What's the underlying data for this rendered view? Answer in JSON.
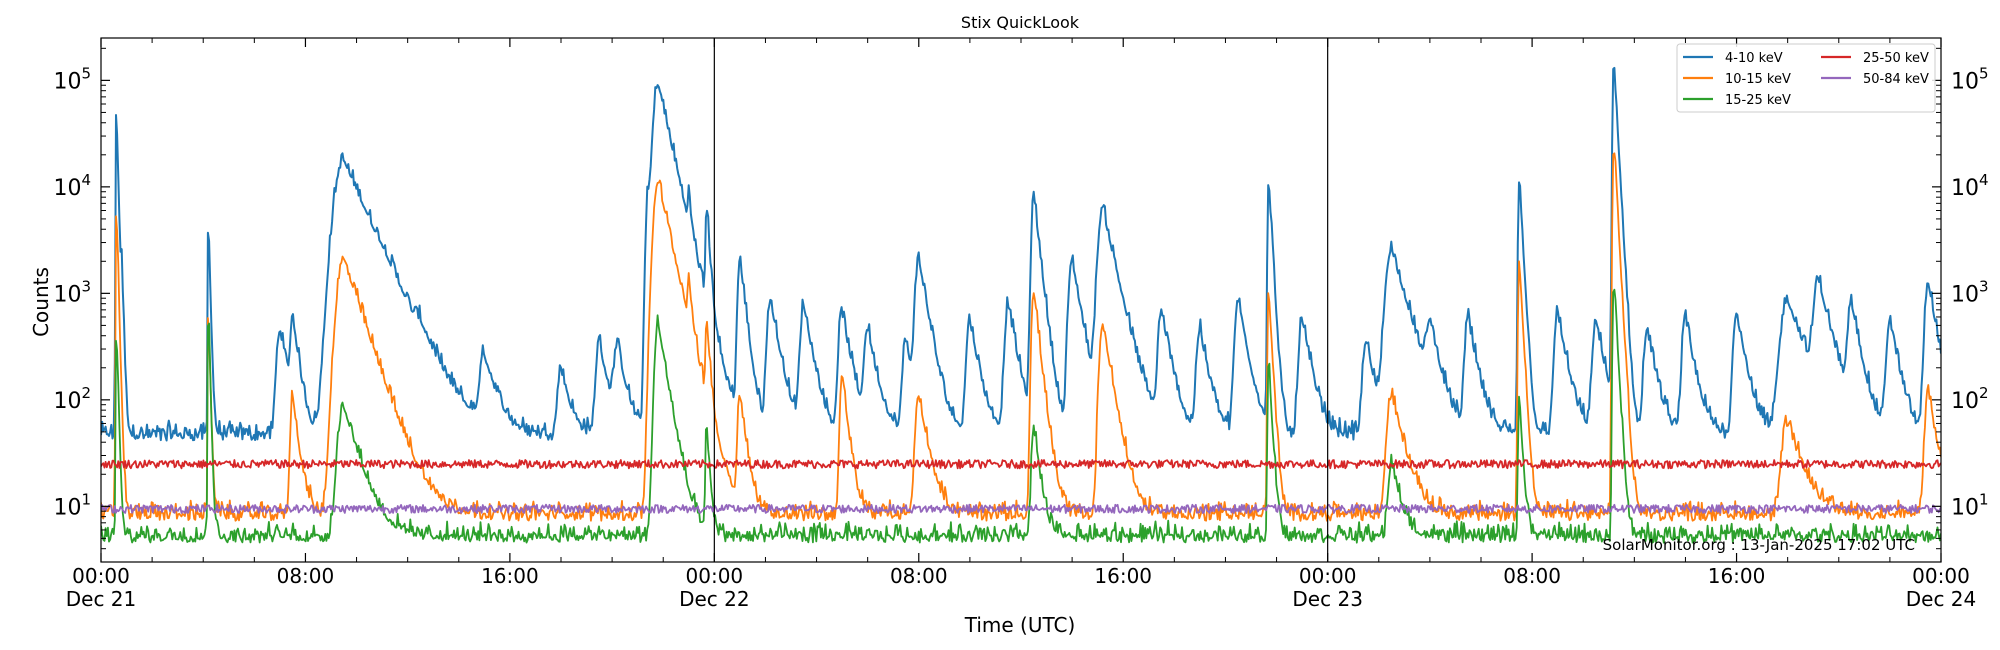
{
  "chart_data": {
    "type": "line",
    "title": "Stix QuickLook",
    "xlabel": "Time (UTC)",
    "ylabel": "Counts",
    "yscale": "log",
    "ylim": [
      3,
      250000
    ],
    "xlim_hours": [
      0,
      72
    ],
    "x_ticks": [
      {
        "hour": 0,
        "time": "00:00",
        "date": "Dec 21"
      },
      {
        "hour": 8,
        "time": "08:00",
        "date": ""
      },
      {
        "hour": 16,
        "time": "16:00",
        "date": ""
      },
      {
        "hour": 24,
        "time": "00:00",
        "date": "Dec 22"
      },
      {
        "hour": 32,
        "time": "08:00",
        "date": ""
      },
      {
        "hour": 40,
        "time": "16:00",
        "date": ""
      },
      {
        "hour": 48,
        "time": "00:00",
        "date": "Dec 23"
      },
      {
        "hour": 56,
        "time": "08:00",
        "date": ""
      },
      {
        "hour": 64,
        "time": "16:00",
        "date": ""
      },
      {
        "hour": 72,
        "time": "00:00",
        "date": "Dec 24"
      }
    ],
    "y_ticks": [
      {
        "value": 10,
        "base": "10",
        "exp": "1"
      },
      {
        "value": 100,
        "base": "10",
        "exp": "2"
      },
      {
        "value": 1000,
        "base": "10",
        "exp": "3"
      },
      {
        "value": 10000,
        "base": "10",
        "exp": "4"
      },
      {
        "value": 100000,
        "base": "10",
        "exp": "5"
      }
    ],
    "day_boundaries_hours": [
      24,
      48
    ],
    "legend_position": "top-right",
    "annotation": "SolarMonitor.org : 13-Jan-2025 17:02 UTC",
    "series": [
      {
        "name": "4-10 keV",
        "color": "#1f77b4",
        "base": 45,
        "flares": [
          [
            0.6,
            55000,
            0.05
          ],
          [
            0.8,
            2000,
            0.05
          ],
          [
            4.2,
            5000,
            0.05
          ],
          [
            7.0,
            400,
            0.3
          ],
          [
            7.5,
            500,
            0.2
          ],
          [
            9.5,
            17000,
            0.8
          ],
          [
            11.0,
            150,
            0.5
          ],
          [
            12.5,
            100,
            0.4
          ],
          [
            15.0,
            200,
            0.4
          ],
          [
            18.0,
            150,
            0.3
          ],
          [
            19.5,
            300,
            0.3
          ],
          [
            20.2,
            250,
            0.3
          ],
          [
            21.4,
            7000,
            0.2
          ],
          [
            21.8,
            90000,
            0.4
          ],
          [
            23.0,
            4000,
            0.1
          ],
          [
            23.7,
            6000,
            0.1
          ],
          [
            25.0,
            2000,
            0.2
          ],
          [
            26.2,
            800,
            0.3
          ],
          [
            27.5,
            700,
            0.3
          ],
          [
            29.0,
            600,
            0.3
          ],
          [
            30.0,
            400,
            0.3
          ],
          [
            31.5,
            300,
            0.3
          ],
          [
            32.0,
            2000,
            0.3
          ],
          [
            34.0,
            500,
            0.3
          ],
          [
            35.5,
            700,
            0.3
          ],
          [
            36.5,
            8000,
            0.2
          ],
          [
            38.0,
            2000,
            0.3
          ],
          [
            39.2,
            6000,
            0.4
          ],
          [
            41.5,
            600,
            0.3
          ],
          [
            43.0,
            400,
            0.3
          ],
          [
            44.5,
            800,
            0.3
          ],
          [
            45.7,
            11000,
            0.1
          ],
          [
            47.0,
            500,
            0.3
          ],
          [
            49.5,
            300,
            0.3
          ],
          [
            50.5,
            2500,
            0.5
          ],
          [
            52.0,
            400,
            0.3
          ],
          [
            53.5,
            500,
            0.3
          ],
          [
            55.5,
            12000,
            0.1
          ],
          [
            57.0,
            600,
            0.3
          ],
          [
            58.5,
            500,
            0.3
          ],
          [
            59.2,
            150000,
            0.1
          ],
          [
            60.5,
            400,
            0.3
          ],
          [
            62.0,
            500,
            0.3
          ],
          [
            64.0,
            600,
            0.3
          ],
          [
            66.0,
            800,
            0.6
          ],
          [
            67.2,
            1200,
            0.4
          ],
          [
            68.5,
            700,
            0.3
          ],
          [
            70.0,
            500,
            0.3
          ],
          [
            71.5,
            1200,
            0.3
          ]
        ]
      },
      {
        "name": "10-15 keV",
        "color": "#ff7f0e",
        "base": 8,
        "flares": [
          [
            0.6,
            7000,
            0.05
          ],
          [
            4.2,
            700,
            0.05
          ],
          [
            7.5,
            100,
            0.2
          ],
          [
            9.5,
            2000,
            0.6
          ],
          [
            21.8,
            11000,
            0.4
          ],
          [
            23.0,
            1000,
            0.1
          ],
          [
            23.7,
            500,
            0.1
          ],
          [
            25.0,
            100,
            0.2
          ],
          [
            29.0,
            150,
            0.2
          ],
          [
            32.0,
            100,
            0.3
          ],
          [
            36.5,
            1000,
            0.2
          ],
          [
            39.2,
            500,
            0.3
          ],
          [
            45.7,
            1000,
            0.1
          ],
          [
            50.5,
            100,
            0.4
          ],
          [
            55.5,
            2000,
            0.1
          ],
          [
            59.2,
            25000,
            0.1
          ],
          [
            66.0,
            50,
            0.5
          ],
          [
            71.5,
            100,
            0.3
          ]
        ]
      },
      {
        "name": "15-25 keV",
        "color": "#2ca02c",
        "base": 5,
        "flares": [
          [
            0.6,
            500,
            0.05
          ],
          [
            4.2,
            700,
            0.05
          ],
          [
            9.5,
            80,
            0.5
          ],
          [
            21.8,
            500,
            0.3
          ],
          [
            23.7,
            50,
            0.1
          ],
          [
            36.5,
            50,
            0.2
          ],
          [
            45.7,
            200,
            0.1
          ],
          [
            50.5,
            20,
            0.3
          ],
          [
            55.5,
            100,
            0.1
          ],
          [
            59.2,
            1300,
            0.1
          ]
        ]
      },
      {
        "name": "25-50 keV",
        "color": "#d62728",
        "base": 25,
        "flares": []
      },
      {
        "name": "50-84 keV",
        "color": "#9467bd",
        "base": 9.5,
        "flares": []
      }
    ]
  }
}
